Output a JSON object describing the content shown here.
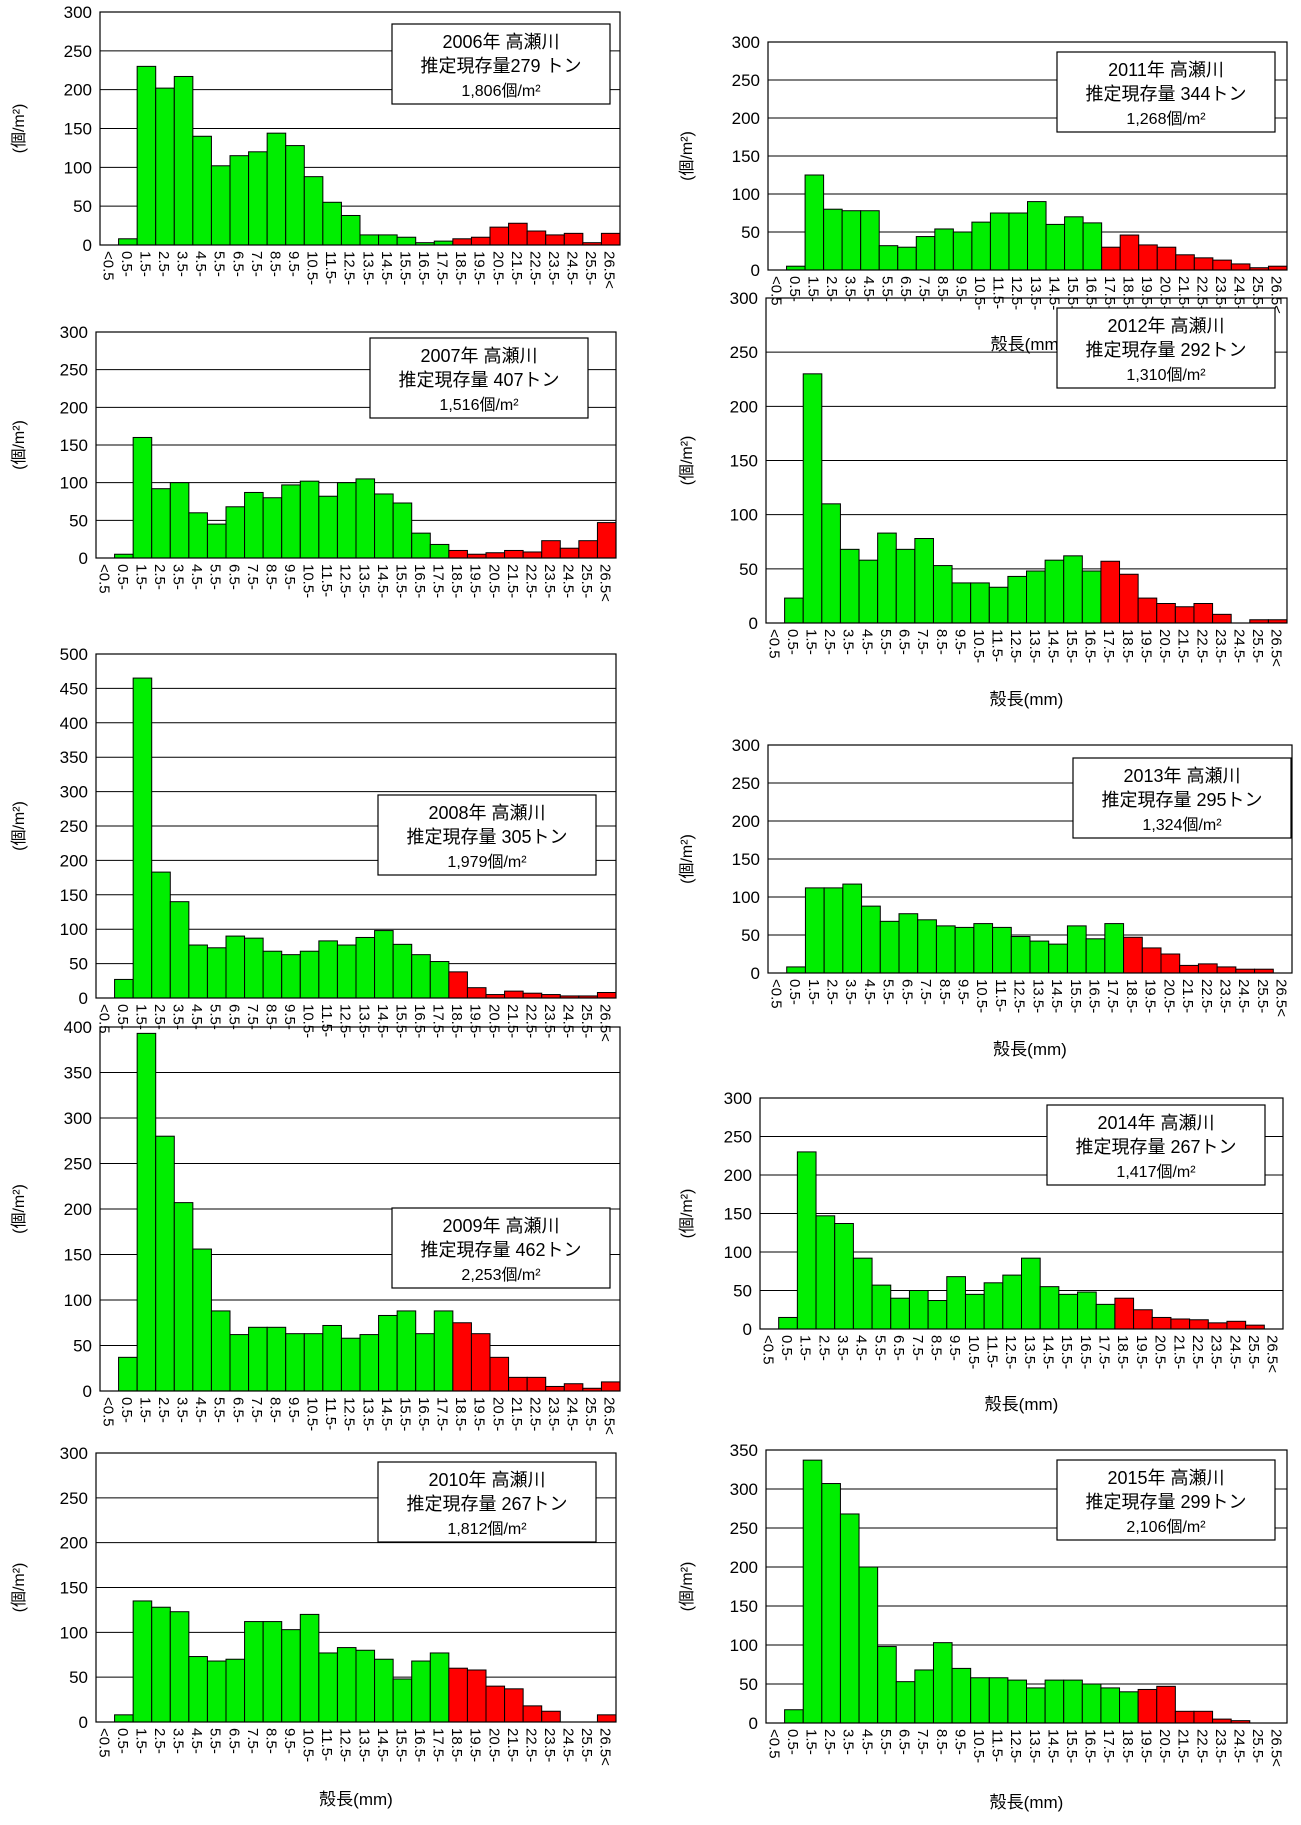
{
  "colors": {
    "green": "#00ee00",
    "red": "#ff0000",
    "edge": "#000000",
    "grid": "#000000"
  },
  "categories": [
    "<0.5",
    "0.5-",
    "1.5-",
    "2.5-",
    "3.5-",
    "4.5-",
    "5.5-",
    "6.5-",
    "7.5-",
    "8.5-",
    "9.5-",
    "10.5-",
    "11.5-",
    "12.5-",
    "13.5-",
    "14.5-",
    "15.5-",
    "16.5-",
    "17.5-",
    "18.5-",
    "19.5-",
    "20.5-",
    "21.5-",
    "22.5-",
    "23.5-",
    "24.5-",
    "25.5-",
    "26.5<"
  ],
  "chart_data": [
    {
      "type": "bar",
      "box_lines": [
        "2006年 高瀬川",
        "推定現存量279 トン",
        "1,806個/m²"
      ],
      "ylabel": "(個/m²)",
      "xlabel": "",
      "ylim": [
        0,
        300
      ],
      "yticks": [
        0,
        50,
        100,
        150,
        200,
        250,
        300
      ],
      "red_from_index": 19,
      "values": [
        0,
        8,
        230,
        202,
        217,
        140,
        102,
        115,
        120,
        144,
        128,
        88,
        55,
        38,
        13,
        13,
        10,
        3,
        5,
        8,
        10,
        23,
        28,
        18,
        13,
        15,
        3,
        15
      ]
    },
    {
      "type": "bar",
      "box_lines": [
        "2011年 高瀬川",
        "推定現存量 344トン",
        "1,268個/m²"
      ],
      "ylabel": "(個/m²)",
      "xlabel": "殻長(mm)",
      "ylim": [
        0,
        300
      ],
      "yticks": [
        0,
        50,
        100,
        150,
        200,
        250,
        300
      ],
      "red_from_index": 18,
      "values": [
        0,
        5,
        125,
        80,
        78,
        78,
        32,
        30,
        44,
        54,
        50,
        63,
        75,
        75,
        90,
        60,
        70,
        62,
        30,
        46,
        33,
        30,
        20,
        16,
        13,
        8,
        3,
        5
      ]
    },
    {
      "type": "bar",
      "box_lines": [
        "2007年 高瀬川",
        "推定現存量 407トン",
        "1,516個/m²"
      ],
      "ylabel": "(個/m²)",
      "xlabel": "",
      "ylim": [
        0,
        300
      ],
      "yticks": [
        0,
        50,
        100,
        150,
        200,
        250,
        300
      ],
      "red_from_index": 19,
      "values": [
        0,
        5,
        160,
        92,
        100,
        60,
        45,
        68,
        87,
        80,
        97,
        102,
        82,
        100,
        105,
        85,
        73,
        33,
        18,
        10,
        5,
        7,
        10,
        8,
        23,
        13,
        23,
        47
      ]
    },
    {
      "type": "bar",
      "box_lines": [
        "2012年 高瀬川",
        "推定現存量 292トン",
        "1,310個/m²"
      ],
      "ylabel": "(個/m²)",
      "xlabel": "殻長(mm)",
      "ylim": [
        0,
        300
      ],
      "yticks": [
        0,
        50,
        100,
        150,
        200,
        250,
        300
      ],
      "red_from_index": 18,
      "values": [
        0,
        23,
        230,
        110,
        68,
        58,
        83,
        68,
        78,
        53,
        37,
        37,
        33,
        43,
        48,
        58,
        62,
        48,
        57,
        45,
        23,
        18,
        15,
        18,
        8,
        0,
        3,
        3
      ]
    },
    {
      "type": "bar",
      "box_lines": [
        "2008年 高瀬川",
        "推定現存量 305トン",
        "1,979個/m²"
      ],
      "ylabel": "(個/m²)",
      "xlabel": "",
      "ylim": [
        0,
        500
      ],
      "yticks": [
        0,
        50,
        100,
        150,
        200,
        250,
        300,
        350,
        400,
        450,
        500
      ],
      "red_from_index": 19,
      "values": [
        0,
        27,
        465,
        183,
        140,
        77,
        73,
        90,
        87,
        68,
        63,
        68,
        83,
        77,
        88,
        98,
        78,
        63,
        53,
        38,
        15,
        5,
        10,
        7,
        5,
        3,
        3,
        8
      ]
    },
    {
      "type": "bar",
      "box_lines": [
        "2013年 高瀬川",
        "推定現存量 295トン",
        "1,324個/m²"
      ],
      "ylabel": "(個/m²)",
      "xlabel": "殻長(mm)",
      "ylim": [
        0,
        300
      ],
      "yticks": [
        0,
        50,
        100,
        150,
        200,
        250,
        300
      ],
      "red_from_index": 19,
      "values": [
        0,
        8,
        112,
        112,
        117,
        88,
        68,
        78,
        70,
        62,
        60,
        65,
        60,
        48,
        42,
        38,
        62,
        45,
        65,
        47,
        33,
        25,
        10,
        12,
        8,
        5,
        5,
        0
      ]
    },
    {
      "type": "bar",
      "box_lines": [
        "2009年 高瀬川",
        "推定現存量 462トン",
        "2,253個/m²"
      ],
      "ylabel": "(個/m²)",
      "xlabel": "",
      "ylim": [
        0,
        400
      ],
      "yticks": [
        0,
        50,
        100,
        150,
        200,
        250,
        300,
        350,
        400
      ],
      "red_from_index": 19,
      "values": [
        0,
        37,
        393,
        280,
        207,
        156,
        88,
        62,
        70,
        70,
        63,
        63,
        72,
        58,
        62,
        83,
        88,
        63,
        88,
        75,
        63,
        37,
        15,
        15,
        5,
        8,
        3,
        10
      ]
    },
    {
      "type": "bar",
      "box_lines": [
        "2014年 高瀬川",
        "推定現存量 267トン",
        "1,417個/m²"
      ],
      "ylabel": "(個/m²)",
      "xlabel": "殻長(mm)",
      "ylim": [
        0,
        300
      ],
      "yticks": [
        0,
        50,
        100,
        150,
        200,
        250,
        300
      ],
      "red_from_index": 19,
      "values": [
        0,
        15,
        230,
        147,
        137,
        92,
        57,
        40,
        50,
        37,
        68,
        45,
        60,
        70,
        92,
        55,
        45,
        48,
        32,
        40,
        25,
        15,
        13,
        12,
        8,
        10,
        5,
        0
      ]
    },
    {
      "type": "bar",
      "box_lines": [
        "2010年 高瀬川",
        "推定現存量 267トン",
        "1,812個/m²"
      ],
      "ylabel": "(個/m²)",
      "xlabel": "殻長(mm)",
      "ylim": [
        0,
        300
      ],
      "yticks": [
        0,
        50,
        100,
        150,
        200,
        250,
        300
      ],
      "red_from_index": 19,
      "values": [
        0,
        8,
        135,
        128,
        123,
        73,
        68,
        70,
        112,
        112,
        103,
        120,
        77,
        83,
        80,
        70,
        48,
        68,
        77,
        60,
        58,
        40,
        37,
        18,
        12,
        0,
        0,
        8
      ]
    },
    {
      "type": "bar",
      "box_lines": [
        "2015年 高瀬川",
        "推定現存量 299トン",
        "2,106個/m²"
      ],
      "ylabel": "(個/m²)",
      "xlabel": "殻長(mm)",
      "ylim": [
        0,
        350
      ],
      "yticks": [
        0,
        50,
        100,
        150,
        200,
        250,
        300,
        350
      ],
      "red_from_index": 20,
      "values": [
        0,
        17,
        337,
        307,
        268,
        200,
        98,
        53,
        68,
        103,
        70,
        58,
        58,
        55,
        45,
        55,
        55,
        50,
        45,
        40,
        43,
        47,
        15,
        15,
        5,
        3,
        0,
        0
      ]
    }
  ]
}
